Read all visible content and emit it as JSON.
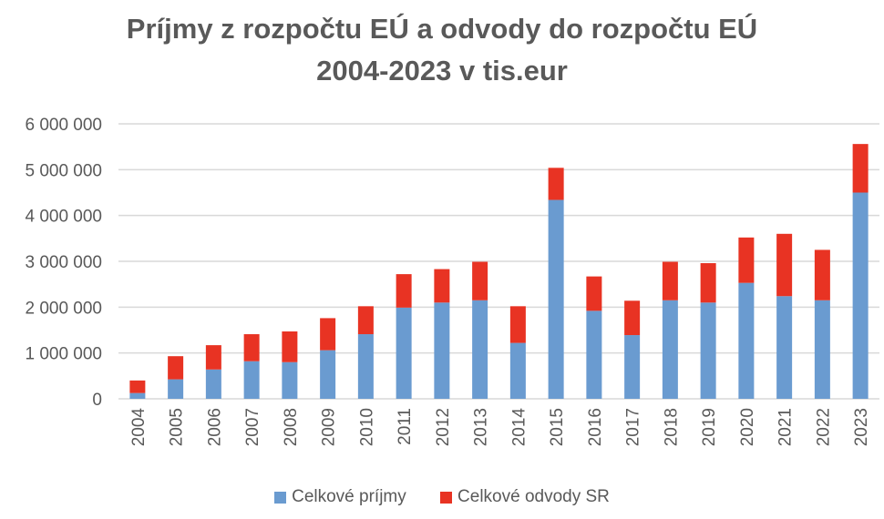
{
  "chart_data": {
    "type": "bar",
    "stacked": true,
    "title": "Príjmy  z rozpočtu EÚ a odvody do rozpočtu EÚ",
    "subtitle": "2004-2023 v tis.eur",
    "xlabel": "",
    "ylabel": "",
    "ylim": [
      0,
      6000000
    ],
    "yticks": [
      0,
      1000000,
      2000000,
      3000000,
      4000000,
      5000000,
      6000000
    ],
    "ytick_labels": [
      "0",
      "1 000 000",
      "2 000 000",
      "3 000 000",
      "4 000 000",
      "5 000 000",
      "6 000 000"
    ],
    "grid": true,
    "legend_position": "bottom",
    "categories": [
      "2004",
      "2005",
      "2006",
      "2007",
      "2008",
      "2009",
      "2010",
      "2011",
      "2012",
      "2013",
      "2014",
      "2015",
      "2016",
      "2017",
      "2018",
      "2019",
      "2020",
      "2021",
      "2022",
      "2023"
    ],
    "series": [
      {
        "name": "Celkové príjmy",
        "color": "#6a9bd0",
        "values": [
          126000,
          425000,
          640000,
          820000,
          800000,
          1060000,
          1410000,
          1990000,
          2100000,
          2150000,
          1220000,
          4340000,
          1920000,
          1390000,
          2150000,
          2100000,
          2530000,
          2240000,
          2150000,
          4500000
        ]
      },
      {
        "name": "Celkové odvody SR",
        "color": "#e83323",
        "values": [
          274000,
          505000,
          530000,
          590000,
          670000,
          700000,
          610000,
          730000,
          730000,
          840000,
          800000,
          700000,
          750000,
          750000,
          840000,
          860000,
          990000,
          1360000,
          1100000,
          1060000
        ]
      }
    ]
  }
}
